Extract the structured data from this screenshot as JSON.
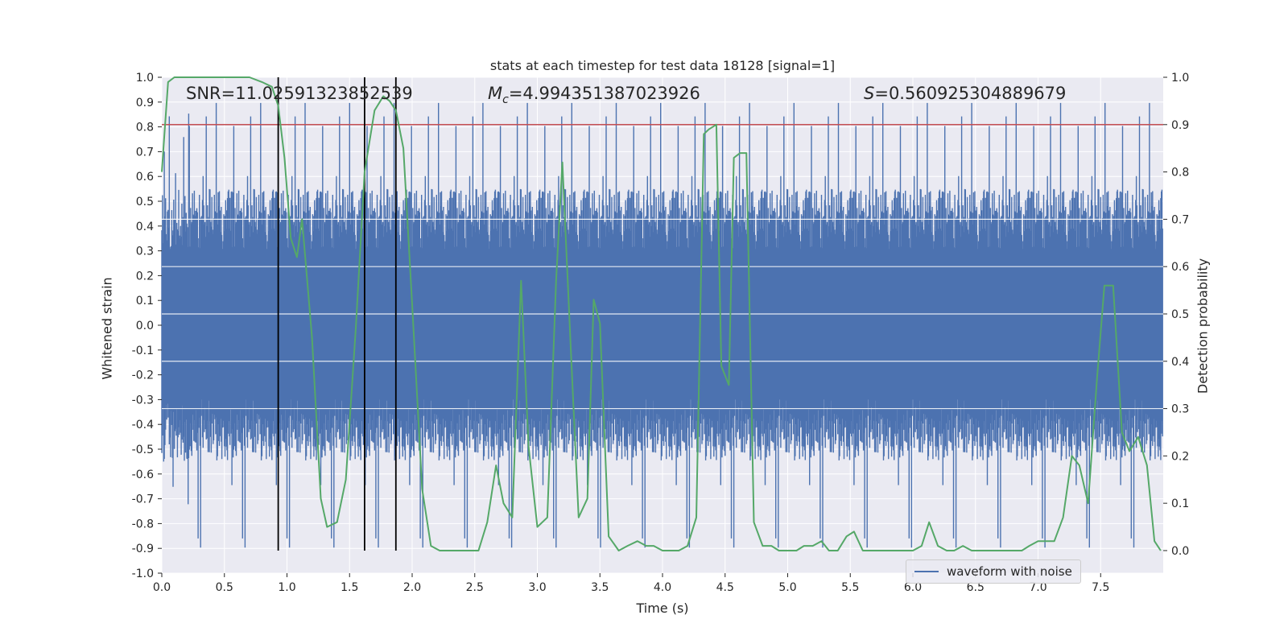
{
  "chart_data": {
    "type": "line",
    "title": "stats at each timestep for test data 18128 [signal=1]",
    "xlabel": "Time (s)",
    "ylabel_left": "Whitened strain",
    "ylabel_right": "Detection probability",
    "xlim": [
      0.0,
      8.0
    ],
    "ylim_left": [
      -1.0,
      1.0
    ],
    "ylim_right": [
      -0.0477,
      1.0
    ],
    "x_ticks": [
      "0.0",
      "0.5",
      "1.0",
      "1.5",
      "2.0",
      "2.5",
      "3.0",
      "3.5",
      "4.0",
      "4.5",
      "5.0",
      "5.5",
      "6.0",
      "6.5",
      "7.0",
      "7.5"
    ],
    "y_ticks_left": [
      "1.0",
      "0.9",
      "0.8",
      "0.7",
      "0.6",
      "0.5",
      "0.4",
      "0.3",
      "0.2",
      "0.1",
      "0.0",
      "-0.1",
      "-0.2",
      "-0.3",
      "-0.4",
      "-0.5",
      "-0.6",
      "-0.7",
      "-0.8",
      "-0.9",
      "-1.0"
    ],
    "y_ticks_right": [
      "1.0",
      "0.9",
      "0.8",
      "0.7",
      "0.6",
      "0.5",
      "0.4",
      "0.3",
      "0.2",
      "0.1",
      "0.0"
    ],
    "annotations": {
      "snr": "SNR=11.02591323852539",
      "mc_symbol": "M",
      "mc_sub": "c",
      "mc_value": "=4.994351387023926",
      "s_symbol": "S",
      "s_value": "=0.560925304889679"
    },
    "legend": {
      "label": "waveform with noise",
      "placement": "lower-right"
    },
    "colors": {
      "waveform": "#4c72b0",
      "probability": "#55a868",
      "threshold": "#c44e52",
      "markers": "#000000",
      "background": "#eaeaf2",
      "grid": "#ffffff"
    },
    "threshold": 0.9,
    "event_markers_x": [
      0.93,
      1.62,
      1.87
    ],
    "waveform": {
      "name": "waveform with noise",
      "description_samples": 1600,
      "band_upper": [
        0.55,
        0.45,
        0.6,
        0.4,
        0.5
      ],
      "band_lower": [
        -0.45,
        -0.55,
        -0.4,
        -0.6,
        -0.5
      ],
      "spike_max": 0.93,
      "spike_min": -0.91
    },
    "series": [
      {
        "name": "detection probability",
        "x": [
          0.0,
          0.05,
          0.1,
          0.2,
          0.3,
          0.5,
          0.7,
          0.8,
          0.88,
          0.93,
          0.98,
          1.03,
          1.08,
          1.12,
          1.2,
          1.27,
          1.32,
          1.4,
          1.47,
          1.55,
          1.62,
          1.7,
          1.77,
          1.82,
          1.87,
          1.93,
          2.0,
          2.08,
          2.15,
          2.22,
          2.3,
          2.4,
          2.47,
          2.53,
          2.6,
          2.67,
          2.73,
          2.8,
          2.87,
          2.93,
          3.0,
          3.08,
          3.15,
          3.2,
          3.27,
          3.33,
          3.4,
          3.45,
          3.5,
          3.57,
          3.65,
          3.72,
          3.8,
          3.87,
          3.93,
          4.0,
          4.07,
          4.13,
          4.2,
          4.27,
          4.33,
          4.37,
          4.43,
          4.47,
          4.53,
          4.57,
          4.62,
          4.67,
          4.73,
          4.8,
          4.87,
          4.93,
          5.0,
          5.07,
          5.13,
          5.2,
          5.27,
          5.33,
          5.4,
          5.47,
          5.53,
          5.6,
          5.67,
          5.73,
          5.8,
          5.87,
          5.93,
          6.0,
          6.07,
          6.13,
          6.2,
          6.27,
          6.33,
          6.4,
          6.47,
          6.53,
          6.6,
          6.67,
          6.73,
          6.8,
          6.87,
          6.93,
          7.0,
          7.07,
          7.13,
          7.2,
          7.27,
          7.33,
          7.4,
          7.47,
          7.53,
          7.6,
          7.67,
          7.73,
          7.8,
          7.87,
          7.93,
          7.98
        ],
        "values": [
          0.8,
          0.99,
          1.0,
          1.0,
          1.0,
          1.0,
          1.0,
          0.99,
          0.98,
          0.94,
          0.83,
          0.66,
          0.62,
          0.7,
          0.45,
          0.11,
          0.05,
          0.06,
          0.15,
          0.47,
          0.8,
          0.93,
          0.96,
          0.95,
          0.93,
          0.85,
          0.52,
          0.13,
          0.01,
          0.0,
          0.0,
          0.0,
          0.0,
          0.0,
          0.06,
          0.18,
          0.1,
          0.07,
          0.57,
          0.22,
          0.05,
          0.07,
          0.57,
          0.82,
          0.41,
          0.07,
          0.11,
          0.53,
          0.48,
          0.03,
          0.0,
          0.01,
          0.02,
          0.01,
          0.01,
          0.0,
          0.0,
          0.0,
          0.01,
          0.07,
          0.88,
          0.89,
          0.9,
          0.39,
          0.35,
          0.83,
          0.84,
          0.84,
          0.06,
          0.01,
          0.01,
          0.0,
          0.0,
          0.0,
          0.01,
          0.01,
          0.02,
          0.0,
          0.0,
          0.03,
          0.04,
          0.0,
          0.0,
          0.0,
          0.0,
          0.0,
          0.0,
          0.0,
          0.01,
          0.06,
          0.01,
          0.0,
          0.0,
          0.01,
          0.0,
          0.0,
          0.0,
          0.0,
          0.0,
          0.0,
          0.0,
          0.01,
          0.02,
          0.02,
          0.02,
          0.07,
          0.2,
          0.18,
          0.1,
          0.36,
          0.56,
          0.56,
          0.25,
          0.21,
          0.24,
          0.18,
          0.02,
          0.0
        ]
      }
    ]
  }
}
